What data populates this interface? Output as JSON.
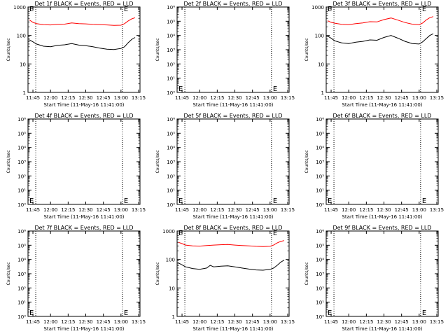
{
  "chart_data": [
    {
      "type": "line",
      "title": "Det 1f BLACK = Events, RED = LLD",
      "xlabel": "Start Time (11-May-16 11:41:00)",
      "ylabel": "Counts/sec",
      "yscale": "log",
      "ylim": [
        1,
        1000
      ],
      "ytick_values": [
        1,
        10,
        100,
        1000
      ],
      "ytick_labels": [
        "1",
        "10",
        "100",
        "1000"
      ],
      "xlim": [
        11.68,
        13.27
      ],
      "xtick_values": [
        11.75,
        12.0,
        12.25,
        12.5,
        12.75,
        13.0,
        13.25
      ],
      "xtick_labels": [
        "11:45",
        "12:00",
        "12:15",
        "12:30",
        "12:45",
        "13:00",
        "13:15"
      ],
      "vlines": [
        11.79,
        13.02
      ],
      "markers": [
        {
          "label": "E",
          "x": 11.7,
          "y": 900
        },
        {
          "label": "E",
          "x": 13.04,
          "y": 900
        }
      ],
      "series": [
        {
          "color": "#ff0000",
          "x": [
            11.7,
            11.75,
            11.8,
            11.9,
            12.0,
            12.1,
            12.2,
            12.3,
            12.4,
            12.5,
            12.6,
            12.7,
            12.8,
            12.9,
            13.0,
            13.05,
            13.1,
            13.15,
            13.2
          ],
          "y": [
            350,
            290,
            260,
            240,
            235,
            245,
            250,
            275,
            260,
            255,
            245,
            240,
            235,
            225,
            230,
            260,
            320,
            380,
            420
          ]
        },
        {
          "color": "#000000",
          "x": [
            11.7,
            11.75,
            11.8,
            11.9,
            12.0,
            12.1,
            12.2,
            12.3,
            12.4,
            12.5,
            12.6,
            12.7,
            12.8,
            12.9,
            13.0,
            13.05,
            13.1,
            13.15,
            13.2
          ],
          "y": [
            70,
            60,
            50,
            42,
            40,
            45,
            47,
            52,
            46,
            44,
            40,
            36,
            33,
            32,
            35,
            40,
            55,
            72,
            85
          ]
        }
      ]
    },
    {
      "type": "line",
      "title": "Det 2f BLACK = Events, RED = LLD",
      "xlabel": "Start Time (11-May-16 11:41:00)",
      "ylabel": "Counts/sec",
      "yscale": "log",
      "ylim": [
        1,
        1000000
      ],
      "ytick_values": [
        1,
        10,
        100,
        1000,
        10000,
        100000,
        1000000
      ],
      "ytick_labels": [
        "10⁰",
        "10¹",
        "10²",
        "10³",
        "10⁴",
        "10⁵",
        "10⁶"
      ],
      "xlim": [
        11.68,
        13.27
      ],
      "xtick_values": [
        11.75,
        12.0,
        12.25,
        12.5,
        12.75,
        13.0,
        13.25
      ],
      "xtick_labels": [
        "11:45",
        "12:00",
        "12:15",
        "12:30",
        "12:45",
        "13:00",
        "13:15"
      ],
      "vlines": [
        11.79,
        13.02
      ],
      "markers": [
        {
          "label": "E",
          "x": 11.7,
          "y": 2
        },
        {
          "label": "E",
          "x": 13.04,
          "y": 2
        }
      ],
      "series": []
    },
    {
      "type": "line",
      "title": "Det 3f BLACK = Events, RED = LLD",
      "xlabel": "Start Time (11-May-16 11:41:00)",
      "ylabel": "Counts/sec",
      "yscale": "log",
      "ylim": [
        1,
        1000
      ],
      "ytick_values": [
        1,
        10,
        100,
        1000
      ],
      "ytick_labels": [
        "1",
        "10",
        "100",
        "1000"
      ],
      "xlim": [
        11.68,
        13.27
      ],
      "xtick_values": [
        11.75,
        12.0,
        12.25,
        12.5,
        12.75,
        13.0,
        13.25
      ],
      "xtick_labels": [
        "11:45",
        "12:00",
        "12:15",
        "12:30",
        "12:45",
        "13:00",
        "13:15"
      ],
      "vlines": [
        11.79,
        13.02
      ],
      "markers": [
        {
          "label": "E",
          "x": 11.7,
          "y": 900
        },
        {
          "label": "E",
          "x": 13.04,
          "y": 900
        }
      ],
      "series": [
        {
          "color": "#ff0000",
          "x": [
            11.7,
            11.75,
            11.8,
            11.9,
            12.0,
            12.1,
            12.2,
            12.3,
            12.4,
            12.5,
            12.6,
            12.7,
            12.8,
            12.9,
            13.0,
            13.05,
            13.1,
            13.15,
            13.2
          ],
          "y": [
            330,
            290,
            270,
            245,
            240,
            260,
            275,
            305,
            300,
            360,
            410,
            345,
            285,
            250,
            240,
            275,
            350,
            420,
            460
          ]
        },
        {
          "color": "#000000",
          "x": [
            11.7,
            11.75,
            11.8,
            11.9,
            12.0,
            12.1,
            12.2,
            12.3,
            12.4,
            12.5,
            12.6,
            12.7,
            12.8,
            12.9,
            13.0,
            13.05,
            13.1,
            13.15,
            13.2
          ],
          "y": [
            95,
            80,
            65,
            55,
            52,
            58,
            62,
            70,
            68,
            85,
            100,
            80,
            62,
            52,
            50,
            60,
            78,
            100,
            115
          ]
        }
      ]
    },
    {
      "type": "line",
      "title": "Det 4f BLACK = Events, RED = LLD",
      "xlabel": "Start Time (11-May-16 11:41:00)",
      "ylabel": "Counts/sec",
      "yscale": "log",
      "ylim": [
        1,
        1000000
      ],
      "ytick_values": [
        1,
        10,
        100,
        1000,
        10000,
        100000,
        1000000
      ],
      "ytick_labels": [
        "10⁰",
        "10¹",
        "10²",
        "10³",
        "10⁴",
        "10⁵",
        "10⁶"
      ],
      "xlim": [
        11.68,
        13.27
      ],
      "xtick_values": [
        11.75,
        12.0,
        12.25,
        12.5,
        12.75,
        13.0,
        13.25
      ],
      "xtick_labels": [
        "11:45",
        "12:00",
        "12:15",
        "12:30",
        "12:45",
        "13:00",
        "13:15"
      ],
      "vlines": [
        11.79,
        13.02
      ],
      "markers": [
        {
          "label": "E",
          "x": 11.7,
          "y": 2
        },
        {
          "label": "E",
          "x": 13.04,
          "y": 2
        }
      ],
      "series": []
    },
    {
      "type": "line",
      "title": "Det 5f BLACK = Events, RED = LLD",
      "xlabel": "Start Time (11-May-16 11:41:00)",
      "ylabel": "Counts/sec",
      "yscale": "log",
      "ylim": [
        1,
        1000000
      ],
      "ytick_values": [
        1,
        10,
        100,
        1000,
        10000,
        100000,
        1000000
      ],
      "ytick_labels": [
        "10⁰",
        "10¹",
        "10²",
        "10³",
        "10⁴",
        "10⁵",
        "10⁶"
      ],
      "xlim": [
        11.68,
        13.27
      ],
      "xtick_values": [
        11.75,
        12.0,
        12.25,
        12.5,
        12.75,
        13.0,
        13.25
      ],
      "xtick_labels": [
        "11:45",
        "12:00",
        "12:15",
        "12:30",
        "12:45",
        "13:00",
        "13:15"
      ],
      "vlines": [
        11.79,
        13.02
      ],
      "markers": [
        {
          "label": "E",
          "x": 11.7,
          "y": 2
        },
        {
          "label": "E",
          "x": 13.04,
          "y": 2
        }
      ],
      "series": []
    },
    {
      "type": "line",
      "title": "Det 6f BLACK = Events, RED = LLD",
      "xlabel": "Start Time (11-May-16 11:41:00)",
      "ylabel": "Counts/sec",
      "yscale": "log",
      "ylim": [
        1,
        1000000
      ],
      "ytick_values": [
        1,
        10,
        100,
        1000,
        10000,
        100000,
        1000000
      ],
      "ytick_labels": [
        "10⁰",
        "10¹",
        "10²",
        "10³",
        "10⁴",
        "10⁵",
        "10⁶"
      ],
      "xlim": [
        11.68,
        13.27
      ],
      "xtick_values": [
        11.75,
        12.0,
        12.25,
        12.5,
        12.75,
        13.0,
        13.25
      ],
      "xtick_labels": [
        "11:45",
        "12:00",
        "12:15",
        "12:30",
        "12:45",
        "13:00",
        "13:15"
      ],
      "vlines": [
        11.79,
        13.02
      ],
      "markers": [
        {
          "label": "E",
          "x": 11.7,
          "y": 2
        },
        {
          "label": "E",
          "x": 13.04,
          "y": 2
        }
      ],
      "series": []
    },
    {
      "type": "line",
      "title": "Det 7f BLACK = Events, RED = LLD",
      "xlabel": "Start Time (11-May-16 11:41:00)",
      "ylabel": "Counts/sec",
      "yscale": "log",
      "ylim": [
        1,
        1000000
      ],
      "ytick_values": [
        1,
        10,
        100,
        1000,
        10000,
        100000,
        1000000
      ],
      "ytick_labels": [
        "10⁰",
        "10¹",
        "10²",
        "10³",
        "10⁴",
        "10⁵",
        "10⁶"
      ],
      "xlim": [
        11.68,
        13.27
      ],
      "xtick_values": [
        11.75,
        12.0,
        12.25,
        12.5,
        12.75,
        13.0,
        13.25
      ],
      "xtick_labels": [
        "11:45",
        "12:00",
        "12:15",
        "12:30",
        "12:45",
        "13:00",
        "13:15"
      ],
      "vlines": [
        11.79,
        13.02
      ],
      "markers": [
        {
          "label": "E",
          "x": 11.7,
          "y": 2
        },
        {
          "label": "E",
          "x": 13.04,
          "y": 2
        }
      ],
      "series": []
    },
    {
      "type": "line",
      "title": "Det 8f BLACK = Events, RED = LLD",
      "xlabel": "Start Time (11-May-16 11:41:00)",
      "ylabel": "Counts/sec",
      "yscale": "log",
      "ylim": [
        1,
        1000
      ],
      "ytick_values": [
        1,
        10,
        100,
        1000
      ],
      "ytick_labels": [
        "1",
        "10",
        "100",
        "1000"
      ],
      "xlim": [
        11.68,
        13.27
      ],
      "xtick_values": [
        11.75,
        12.0,
        12.25,
        12.5,
        12.75,
        13.0,
        13.25
      ],
      "xtick_labels": [
        "11:45",
        "12:00",
        "12:15",
        "12:30",
        "12:45",
        "13:00",
        "13:15"
      ],
      "vlines": [
        11.79,
        13.02
      ],
      "markers": [
        {
          "label": "E",
          "x": 11.7,
          "y": 900
        },
        {
          "label": "E",
          "x": 13.04,
          "y": 900
        }
      ],
      "series": [
        {
          "color": "#ff0000",
          "x": [
            11.7,
            11.75,
            11.8,
            11.9,
            12.0,
            12.1,
            12.2,
            12.3,
            12.4,
            12.5,
            12.6,
            12.7,
            12.8,
            12.9,
            13.0,
            13.05,
            13.1,
            13.15,
            13.2
          ],
          "y": [
            400,
            360,
            320,
            300,
            295,
            310,
            320,
            330,
            335,
            320,
            310,
            300,
            290,
            285,
            290,
            320,
            380,
            430,
            460
          ]
        },
        {
          "color": "#000000",
          "x": [
            11.7,
            11.75,
            11.8,
            11.9,
            12.0,
            12.1,
            12.15,
            12.2,
            12.3,
            12.4,
            12.5,
            12.6,
            12.7,
            12.8,
            12.9,
            13.0,
            13.05,
            13.1,
            13.15,
            13.2
          ],
          "y": [
            75,
            65,
            55,
            48,
            45,
            50,
            62,
            55,
            58,
            60,
            55,
            50,
            46,
            43,
            42,
            45,
            50,
            62,
            80,
            95
          ]
        }
      ]
    },
    {
      "type": "line",
      "title": "Det 9f BLACK = Events, RED = LLD",
      "xlabel": "Start Time (11-May-16 11:41:00)",
      "ylabel": "Counts/sec",
      "yscale": "log",
      "ylim": [
        1,
        1000000
      ],
      "ytick_values": [
        1,
        10,
        100,
        1000,
        10000,
        100000,
        1000000
      ],
      "ytick_labels": [
        "10⁰",
        "10¹",
        "10²",
        "10³",
        "10⁴",
        "10⁵",
        "10⁶"
      ],
      "xlim": [
        11.68,
        13.27
      ],
      "xtick_values": [
        11.75,
        12.0,
        12.25,
        12.5,
        12.75,
        13.0,
        13.25
      ],
      "xtick_labels": [
        "11:45",
        "12:00",
        "12:15",
        "12:30",
        "12:45",
        "13:00",
        "13:15"
      ],
      "vlines": [
        11.79,
        13.02
      ],
      "markers": [
        {
          "label": "E",
          "x": 11.7,
          "y": 2
        },
        {
          "label": "E",
          "x": 13.04,
          "y": 2
        }
      ],
      "series": []
    }
  ]
}
